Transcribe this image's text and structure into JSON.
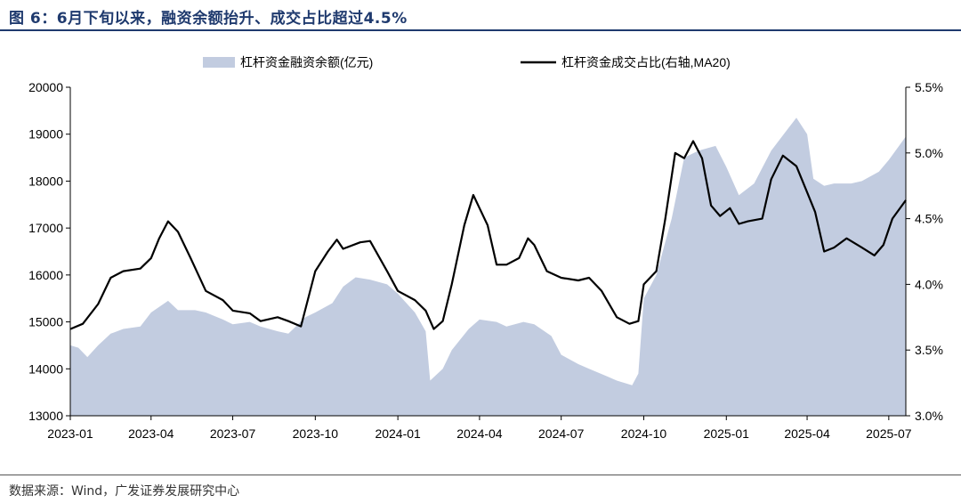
{
  "figure": {
    "title": "图 6：6月下旬以来，融资余额抬升、成交占比超过4.5%",
    "source": "数据来源：Wind，广发证券发展研究中心"
  },
  "colors": {
    "title": "#1f3a6e",
    "area": "#c2cce0",
    "line": "#000000",
    "axis": "#000000"
  },
  "chart_data": {
    "type": "area",
    "legend_position": "top",
    "grid": false,
    "x_range": [
      "2023-01-01",
      "2025-07-20"
    ],
    "x_ticks": [
      "2023-01",
      "2023-04",
      "2023-07",
      "2023-10",
      "2024-01",
      "2024-04",
      "2024-07",
      "2024-10",
      "2025-01",
      "2025-04",
      "2025-07"
    ],
    "y_left": {
      "min": 13000,
      "max": 20000,
      "ticks": [
        "13000",
        "14000",
        "15000",
        "16000",
        "17000",
        "18000",
        "19000",
        "20000"
      ]
    },
    "y_right": {
      "min": 3.0,
      "max": 5.5,
      "ticks": [
        "3.0%",
        "3.5%",
        "4.0%",
        "4.5%",
        "5.0%",
        "5.5%"
      ]
    },
    "series": [
      {
        "name": "杠杆资金融资余额(亿元)",
        "type": "area",
        "axis": "left",
        "points": [
          [
            "2023-01-01",
            14500
          ],
          [
            "2023-01-10",
            14450
          ],
          [
            "2023-01-20",
            14250
          ],
          [
            "2023-02-01",
            14500
          ],
          [
            "2023-02-15",
            14750
          ],
          [
            "2023-03-01",
            14850
          ],
          [
            "2023-03-20",
            14900
          ],
          [
            "2023-04-01",
            15200
          ],
          [
            "2023-04-20",
            15450
          ],
          [
            "2023-05-01",
            15250
          ],
          [
            "2023-05-20",
            15250
          ],
          [
            "2023-06-01",
            15200
          ],
          [
            "2023-06-20",
            15050
          ],
          [
            "2023-07-01",
            14950
          ],
          [
            "2023-07-20",
            15000
          ],
          [
            "2023-08-01",
            14900
          ],
          [
            "2023-08-20",
            14800
          ],
          [
            "2023-09-01",
            14750
          ],
          [
            "2023-09-20",
            15100
          ],
          [
            "2023-10-01",
            15200
          ],
          [
            "2023-10-20",
            15400
          ],
          [
            "2023-11-01",
            15750
          ],
          [
            "2023-11-15",
            15950
          ],
          [
            "2023-12-01",
            15900
          ],
          [
            "2023-12-20",
            15800
          ],
          [
            "2024-01-01",
            15600
          ],
          [
            "2024-01-20",
            15200
          ],
          [
            "2024-02-01",
            14800
          ],
          [
            "2024-02-06",
            13750
          ],
          [
            "2024-02-20",
            14000
          ],
          [
            "2024-03-01",
            14400
          ],
          [
            "2024-03-20",
            14850
          ],
          [
            "2024-04-01",
            15050
          ],
          [
            "2024-04-20",
            15000
          ],
          [
            "2024-05-01",
            14900
          ],
          [
            "2024-05-20",
            15000
          ],
          [
            "2024-06-01",
            14950
          ],
          [
            "2024-06-20",
            14700
          ],
          [
            "2024-07-01",
            14300
          ],
          [
            "2024-07-20",
            14100
          ],
          [
            "2024-08-01",
            14000
          ],
          [
            "2024-08-20",
            13850
          ],
          [
            "2024-09-01",
            13750
          ],
          [
            "2024-09-18",
            13650
          ],
          [
            "2024-09-25",
            13900
          ],
          [
            "2024-10-01",
            15500
          ],
          [
            "2024-10-15",
            16000
          ],
          [
            "2024-11-01",
            17200
          ],
          [
            "2024-11-15",
            18500
          ],
          [
            "2024-12-01",
            18650
          ],
          [
            "2024-12-20",
            18750
          ],
          [
            "2025-01-01",
            18300
          ],
          [
            "2025-01-15",
            17700
          ],
          [
            "2025-02-01",
            17950
          ],
          [
            "2025-02-20",
            18650
          ],
          [
            "2025-03-10",
            19100
          ],
          [
            "2025-03-20",
            19350
          ],
          [
            "2025-04-01",
            19000
          ],
          [
            "2025-04-08",
            18050
          ],
          [
            "2025-04-20",
            17900
          ],
          [
            "2025-05-01",
            17950
          ],
          [
            "2025-05-20",
            17950
          ],
          [
            "2025-06-01",
            18000
          ],
          [
            "2025-06-20",
            18200
          ],
          [
            "2025-07-01",
            18450
          ],
          [
            "2025-07-20",
            18950
          ]
        ]
      },
      {
        "name": "杠杆资金成交占比(右轴,MA20)",
        "type": "line",
        "axis": "right",
        "points": [
          [
            "2023-01-01",
            3.66
          ],
          [
            "2023-01-15",
            3.7
          ],
          [
            "2023-02-01",
            3.85
          ],
          [
            "2023-02-15",
            4.05
          ],
          [
            "2023-03-01",
            4.1
          ],
          [
            "2023-03-20",
            4.12
          ],
          [
            "2023-04-01",
            4.2
          ],
          [
            "2023-04-10",
            4.35
          ],
          [
            "2023-04-20",
            4.48
          ],
          [
            "2023-05-01",
            4.4
          ],
          [
            "2023-05-15",
            4.2
          ],
          [
            "2023-06-01",
            3.95
          ],
          [
            "2023-06-20",
            3.88
          ],
          [
            "2023-07-01",
            3.8
          ],
          [
            "2023-07-20",
            3.78
          ],
          [
            "2023-08-01",
            3.72
          ],
          [
            "2023-08-20",
            3.75
          ],
          [
            "2023-09-01",
            3.72
          ],
          [
            "2023-09-15",
            3.68
          ],
          [
            "2023-10-01",
            4.1
          ],
          [
            "2023-10-15",
            4.25
          ],
          [
            "2023-10-25",
            4.34
          ],
          [
            "2023-11-01",
            4.27
          ],
          [
            "2023-11-20",
            4.32
          ],
          [
            "2023-12-01",
            4.33
          ],
          [
            "2023-12-20",
            4.1
          ],
          [
            "2024-01-01",
            3.95
          ],
          [
            "2024-01-20",
            3.88
          ],
          [
            "2024-02-01",
            3.8
          ],
          [
            "2024-02-10",
            3.66
          ],
          [
            "2024-02-20",
            3.72
          ],
          [
            "2024-03-01",
            4.0
          ],
          [
            "2024-03-15",
            4.45
          ],
          [
            "2024-03-25",
            4.68
          ],
          [
            "2024-04-01",
            4.58
          ],
          [
            "2024-04-10",
            4.45
          ],
          [
            "2024-04-20",
            4.15
          ],
          [
            "2024-05-01",
            4.15
          ],
          [
            "2024-05-15",
            4.2
          ],
          [
            "2024-05-25",
            4.35
          ],
          [
            "2024-06-01",
            4.3
          ],
          [
            "2024-06-15",
            4.1
          ],
          [
            "2024-07-01",
            4.05
          ],
          [
            "2024-07-20",
            4.03
          ],
          [
            "2024-08-01",
            4.05
          ],
          [
            "2024-08-15",
            3.95
          ],
          [
            "2024-09-01",
            3.75
          ],
          [
            "2024-09-15",
            3.7
          ],
          [
            "2024-09-25",
            3.72
          ],
          [
            "2024-10-01",
            4.0
          ],
          [
            "2024-10-15",
            4.1
          ],
          [
            "2024-10-25",
            4.5
          ],
          [
            "2024-11-05",
            5.0
          ],
          [
            "2024-11-15",
            4.96
          ],
          [
            "2024-11-25",
            5.09
          ],
          [
            "2024-12-05",
            4.96
          ],
          [
            "2024-12-15",
            4.6
          ],
          [
            "2024-12-25",
            4.52
          ],
          [
            "2025-01-05",
            4.58
          ],
          [
            "2025-01-15",
            4.46
          ],
          [
            "2025-01-25",
            4.48
          ],
          [
            "2025-02-10",
            4.5
          ],
          [
            "2025-02-20",
            4.8
          ],
          [
            "2025-03-05",
            4.98
          ],
          [
            "2025-03-20",
            4.9
          ],
          [
            "2025-04-01",
            4.7
          ],
          [
            "2025-04-10",
            4.55
          ],
          [
            "2025-04-20",
            4.25
          ],
          [
            "2025-05-01",
            4.28
          ],
          [
            "2025-05-15",
            4.35
          ],
          [
            "2025-06-01",
            4.28
          ],
          [
            "2025-06-15",
            4.22
          ],
          [
            "2025-06-25",
            4.3
          ],
          [
            "2025-07-05",
            4.5
          ],
          [
            "2025-07-20",
            4.64
          ]
        ]
      }
    ]
  }
}
